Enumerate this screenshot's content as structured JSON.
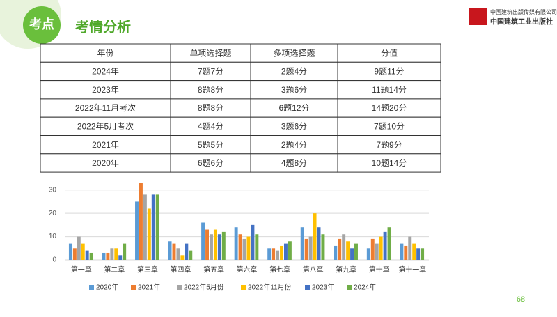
{
  "header": {
    "badge": "考点",
    "title": "考情分析"
  },
  "logo": {
    "line1": "中国建筑出版传媒有限公司",
    "line2": "中国建筑工业出版社"
  },
  "table": {
    "columns": [
      "年份",
      "单项选择题",
      "多项选择题",
      "分值"
    ],
    "rows": [
      [
        "2024年",
        "7题7分",
        "2题4分",
        "9题11分"
      ],
      [
        "2023年",
        "8题8分",
        "3题6分",
        "11题14分"
      ],
      [
        "2022年11月考次",
        "8题8分",
        "6题12分",
        "14题20分"
      ],
      [
        "2022年5月考次",
        "4题4分",
        "3题6分",
        "7题10分"
      ],
      [
        "2021年",
        "5题5分",
        "2题4分",
        "7题9分"
      ],
      [
        "2020年",
        "6题6分",
        "4题8分",
        "10题14分"
      ]
    ]
  },
  "chart_data": {
    "type": "bar",
    "categories": [
      "第一章",
      "第二章",
      "第三章",
      "第四章",
      "第五章",
      "第六章",
      "第七章",
      "第八章",
      "第九章",
      "第十章",
      "第十一章"
    ],
    "series": [
      {
        "name": "2020年",
        "color": "#5b9bd5",
        "values": [
          7,
          3,
          25,
          8,
          16,
          14,
          5,
          14,
          6,
          5,
          7
        ]
      },
      {
        "name": "2021年",
        "color": "#ed7d31",
        "values": [
          5,
          3,
          33,
          7,
          13,
          11,
          5,
          9,
          9,
          9,
          6
        ]
      },
      {
        "name": "2022年5月份",
        "color": "#a5a5a5",
        "values": [
          10,
          5,
          28,
          5,
          11,
          9,
          4,
          10,
          11,
          7,
          10
        ]
      },
      {
        "name": "2022年11月份",
        "color": "#ffc000",
        "values": [
          7,
          5,
          22,
          2,
          13,
          10,
          6,
          20,
          8,
          10,
          7
        ]
      },
      {
        "name": "2023年",
        "color": "#4472c4",
        "values": [
          4,
          2,
          28,
          7,
          11,
          15,
          7,
          14,
          5,
          12,
          5
        ]
      },
      {
        "name": "2024年",
        "color": "#70ad47",
        "values": [
          3,
          7,
          28,
          4,
          12,
          11,
          8,
          11,
          7,
          14,
          5
        ]
      }
    ],
    "ylim": [
      0,
      35
    ],
    "yticks": [
      0,
      10,
      20,
      30
    ],
    "grid": true,
    "legend": "bottom"
  },
  "page_number": "68"
}
